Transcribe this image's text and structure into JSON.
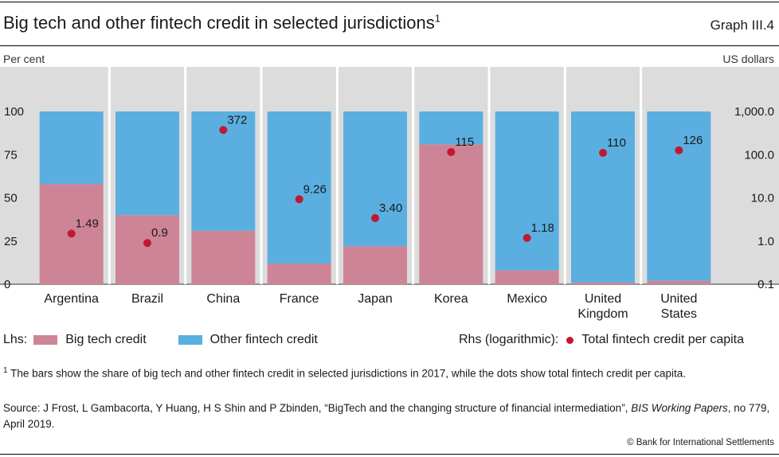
{
  "header": {
    "title": "Big tech and other fintech credit in selected jurisdictions",
    "title_note": "1",
    "graph_label": "Graph III.4",
    "left_unit": "Per cent",
    "right_unit": "US dollars"
  },
  "chart_data": {
    "type": "bar",
    "stacked": true,
    "categories": [
      "Argentina",
      "Brazil",
      "China",
      "France",
      "Japan",
      "Korea",
      "Mexico",
      "United Kingdom",
      "United States"
    ],
    "category_labels": [
      [
        "Argentina"
      ],
      [
        "Brazil"
      ],
      [
        "China"
      ],
      [
        "France"
      ],
      [
        "Japan"
      ],
      [
        "Korea"
      ],
      [
        "Mexico"
      ],
      [
        "United",
        "Kingdom"
      ],
      [
        "United",
        "States"
      ]
    ],
    "series": [
      {
        "name": "Big tech credit",
        "color": "#cd8497",
        "values": [
          58,
          40,
          31,
          12,
          22,
          81,
          8,
          1,
          2
        ]
      },
      {
        "name": "Other fintech credit",
        "color": "#5aafe0",
        "values": [
          42,
          60,
          69,
          88,
          78,
          19,
          92,
          99,
          98
        ]
      }
    ],
    "dots": {
      "name": "Total fintech credit per capita",
      "color": "#c0192f",
      "values": [
        1.49,
        0.9,
        372,
        9.26,
        3.4,
        115,
        1.18,
        110,
        126
      ],
      "labels": [
        "1.49",
        "0.9",
        "372",
        "9.26",
        "3.40",
        "115",
        "1.18",
        "110",
        "126"
      ]
    },
    "y_left": {
      "range": [
        0,
        100
      ],
      "ticks": [
        0,
        25,
        50,
        75,
        100
      ],
      "tick_labels": [
        "0",
        "25",
        "50",
        "75",
        "100"
      ]
    },
    "y_right": {
      "scale": "log",
      "range": [
        0.1,
        1000
      ],
      "ticks": [
        0.1,
        1,
        10,
        100,
        1000
      ],
      "tick_labels": [
        "0.1",
        "1.0",
        "10.0",
        "100.0",
        "1,000.0"
      ]
    },
    "grid": false
  },
  "legend": {
    "lhs_label": "Lhs:",
    "rhs_label": "Rhs (logarithmic):",
    "big_tech": "Big tech credit",
    "other_fintech": "Other fintech credit",
    "total": "Total fintech credit per capita"
  },
  "footnote": {
    "marker": "1",
    "text": "The bars show the share of big tech and other fintech credit in selected jurisdictions in 2017, while the dots show total fintech credit per capita."
  },
  "source": {
    "prefix": "Source: J Frost, L Gambacorta, Y Huang, H S Shin and P Zbinden, “BigTech and the changing structure of financial intermediation”, ",
    "journal": "BIS Working Papers",
    "suffix": ", no 779, April 2019."
  },
  "copyright": "© Bank for International Settlements"
}
